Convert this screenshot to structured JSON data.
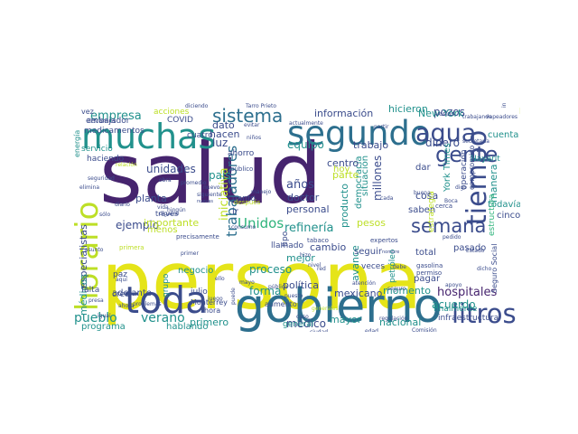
{
  "palette": {
    "dark_purple": "#46246e",
    "indigo": "#3b4c8c",
    "steel_blue": "#2d6f8e",
    "teal": "#21918c",
    "green": "#2fb47c",
    "light_green": "#6ece58",
    "lime": "#bddf26",
    "yellow": "#e5e419"
  },
  "words": [
    {
      "text": "salud",
      "color": "dark_purple"
    },
    {
      "text": "persona",
      "color": "yellow"
    },
    {
      "text": "gobierno",
      "color": "steel_blue"
    },
    {
      "text": "muchas",
      "color": "teal"
    },
    {
      "text": "segundo",
      "color": "steel_blue"
    },
    {
      "text": "toda",
      "color": "indigo"
    },
    {
      "text": "horario",
      "color": "lime"
    },
    {
      "text": "sistema",
      "color": "steel_blue"
    },
    {
      "text": "semana",
      "color": "indigo"
    },
    {
      "text": "tiempo",
      "color": "indigo"
    },
    {
      "text": "agua",
      "color": "indigo"
    },
    {
      "text": "gente",
      "color": "indigo"
    },
    {
      "text": "litros",
      "color": "indigo"
    },
    {
      "text": "hospitales",
      "color": "dark_purple"
    },
    {
      "text": "trabajadores",
      "color": "steel_blue"
    },
    {
      "text": "empresa",
      "color": "teal"
    },
    {
      "text": "Unidos",
      "color": "green"
    },
    {
      "text": "refinería",
      "color": "teal"
    },
    {
      "text": "pueblo",
      "color": "teal"
    },
    {
      "text": "verano",
      "color": "teal"
    },
    {
      "text": "millones",
      "color": "indigo"
    },
    {
      "text": "proceso",
      "color": "teal"
    },
    {
      "text": "unidades",
      "color": "indigo"
    },
    {
      "text": "ejemplo",
      "color": "indigo"
    },
    {
      "text": "forma",
      "color": "teal"
    },
    {
      "text": "acuerdo",
      "color": "teal"
    },
    {
      "text": "pozos",
      "color": "indigo"
    },
    {
      "text": "dinero",
      "color": "indigo"
    },
    {
      "text": "información",
      "color": "indigo"
    },
    {
      "text": "hicieron",
      "color": "teal"
    },
    {
      "text": "New York",
      "color": "teal"
    },
    {
      "text": "especialistas",
      "color": "indigo"
    },
    {
      "text": "médicos",
      "color": "teal"
    },
    {
      "text": "iniciativa",
      "color": "lime"
    },
    {
      "text": "años",
      "color": "indigo"
    },
    {
      "text": "equipo",
      "color": "teal"
    },
    {
      "text": "mexicano",
      "color": "indigo"
    },
    {
      "text": "momento",
      "color": "teal"
    },
    {
      "text": "primero",
      "color": "teal"
    },
    {
      "text": "nacional",
      "color": "teal"
    },
    {
      "text": "médico",
      "color": "indigo"
    },
    {
      "text": "mayor",
      "color": "teal"
    },
    {
      "text": "manera",
      "color": "teal"
    },
    {
      "text": "cuenta",
      "color": "teal"
    },
    {
      "text": "cinco",
      "color": "indigo"
    },
    {
      "text": "todavía",
      "color": "teal"
    },
    {
      "text": "luz",
      "color": "indigo"
    },
    {
      "text": "país",
      "color": "teal"
    },
    {
      "text": "dato",
      "color": "indigo"
    },
    {
      "text": "hacen",
      "color": "indigo"
    },
    {
      "text": "planta",
      "color": "indigo"
    },
    {
      "text": "importante",
      "color": "lime"
    },
    {
      "text": "mejor",
      "color": "teal"
    },
    {
      "text": "política",
      "color": "indigo"
    },
    {
      "text": "avance",
      "color": "teal"
    },
    {
      "text": "producto",
      "color": "teal"
    },
    {
      "text": "democracia",
      "color": "teal"
    },
    {
      "text": "situación",
      "color": "teal"
    },
    {
      "text": "cosa",
      "color": "indigo"
    },
    {
      "text": "doctor",
      "color": "indigo"
    },
    {
      "text": "centro",
      "color": "indigo"
    },
    {
      "text": "parte",
      "color": "lime"
    },
    {
      "text": "trabajo",
      "color": "indigo"
    },
    {
      "text": "personal",
      "color": "indigo"
    },
    {
      "text": "cambio",
      "color": "indigo"
    },
    {
      "text": "pesos",
      "color": "lime"
    },
    {
      "text": "hablando",
      "color": "teal"
    },
    {
      "text": "programa",
      "color": "teal"
    },
    {
      "text": "adelante",
      "color": "indigo"
    },
    {
      "text": "negocio",
      "color": "teal"
    },
    {
      "text": "embajador",
      "color": "indigo"
    },
    {
      "text": "medicamentos",
      "color": "indigo"
    },
    {
      "text": "acciones",
      "color": "lime"
    },
    {
      "text": "COVID",
      "color": "indigo"
    },
    {
      "text": "cuatro",
      "color": "indigo"
    },
    {
      "text": "ahorro",
      "color": "indigo"
    },
    {
      "text": "cuanto",
      "color": "indigo"
    },
    {
      "text": "servicio",
      "color": "teal"
    },
    {
      "text": "haciendo",
      "color": "indigo"
    },
    {
      "text": "falta",
      "color": "indigo"
    },
    {
      "text": "paz",
      "color": "indigo"
    },
    {
      "text": "creo",
      "color": "indigo"
    },
    {
      "text": "grupo",
      "color": "teal"
    },
    {
      "text": "tipo",
      "color": "indigo"
    },
    {
      "text": "llamado",
      "color": "indigo"
    },
    {
      "text": "general",
      "color": "teal"
    },
    {
      "text": "pasado",
      "color": "indigo"
    },
    {
      "text": "pagar",
      "color": "indigo"
    },
    {
      "text": "total",
      "color": "indigo"
    },
    {
      "text": "seguir",
      "color": "indigo"
    },
    {
      "text": "veces",
      "color": "indigo"
    },
    {
      "text": "petróleo",
      "color": "teal"
    },
    {
      "text": "saben",
      "color": "indigo"
    },
    {
      "text": "dar",
      "color": "indigo"
    },
    {
      "text": "finalmente",
      "color": "teal"
    },
    {
      "text": "infraestructura",
      "color": "indigo"
    },
    {
      "text": "York Times",
      "color": "teal"
    },
    {
      "text": "Nayarit",
      "color": "teal"
    },
    {
      "text": "operación",
      "color": "indigo"
    },
    {
      "text": "compromiso",
      "color": "indigo"
    },
    {
      "text": "Seguro Social",
      "color": "indigo"
    },
    {
      "text": "ir",
      "color": "indigo"
    },
    {
      "text": "hoy",
      "color": "lime"
    },
    {
      "text": "menos",
      "color": "lime"
    },
    {
      "text": "julio",
      "color": "indigo"
    },
    {
      "text": "hora",
      "color": "indigo"
    },
    {
      "text": "través",
      "color": "indigo"
    },
    {
      "text": "Monterrey",
      "color": "indigo"
    },
    {
      "text": "aumento",
      "color": "indigo"
    },
    {
      "text": "vez",
      "color": "indigo"
    },
    {
      "text": "energía",
      "color": "teal"
    },
    {
      "text": "llevamos",
      "color": "indigo"
    },
    {
      "text": "precisamente",
      "color": "indigo"
    },
    {
      "text": "estructura",
      "color": "green"
    },
    {
      "text": "público",
      "color": "indigo"
    },
    {
      "text": "tabaco",
      "color": "indigo"
    },
    {
      "text": "expertos",
      "color": "indigo"
    },
    {
      "text": "atención",
      "color": "indigo"
    },
    {
      "text": "gasolina",
      "color": "indigo"
    },
    {
      "text": "permiso",
      "color": "indigo"
    },
    {
      "text": "cerca",
      "color": "indigo"
    },
    {
      "text": "primera",
      "color": "lime"
    },
    {
      "text": "diciendo",
      "color": "indigo"
    },
    {
      "text": "Tarro Prieto",
      "color": "indigo"
    },
    {
      "text": "trabajando",
      "color": "indigo"
    },
    {
      "text": "vapeadores",
      "color": "indigo"
    },
    {
      "text": "industria",
      "color": "indigo"
    },
    {
      "text": "secretaria",
      "color": "indigo"
    },
    {
      "text": "seguridad",
      "color": "indigo"
    },
    {
      "text": "relación",
      "color": "lime"
    },
    {
      "text": "diario",
      "color": "indigo"
    },
    {
      "text": "consumo",
      "color": "indigo"
    },
    {
      "text": "dicho",
      "color": "indigo"
    },
    {
      "text": "apoyo",
      "color": "indigo"
    },
    {
      "text": "Comisión",
      "color": "indigo"
    },
    {
      "text": "siguiente",
      "color": "indigo"
    },
    {
      "text": "nuevo",
      "color": "indigo"
    },
    {
      "text": "sólo",
      "color": "indigo"
    },
    {
      "text": "después",
      "color": "lime"
    },
    {
      "text": "varios",
      "color": "indigo"
    },
    {
      "text": "partir",
      "color": "indigo"
    },
    {
      "text": "actualmente",
      "color": "indigo"
    },
    {
      "text": "niños",
      "color": "indigo"
    },
    {
      "text": "evitar",
      "color": "indigo"
    },
    {
      "text": "ningún",
      "color": "indigo"
    },
    {
      "text": "ley",
      "color": "lime"
    },
    {
      "text": "asunto",
      "color": "indigo"
    },
    {
      "text": "ahora",
      "color": "indigo"
    },
    {
      "text": "presa",
      "color": "indigo"
    },
    {
      "text": "puede",
      "color": "indigo"
    },
    {
      "text": "estrategia",
      "color": "lime"
    },
    {
      "text": "problemas",
      "color": "indigo"
    },
    {
      "text": "pública",
      "color": "indigo"
    },
    {
      "text": "red",
      "color": "indigo"
    },
    {
      "text": "debe",
      "color": "indigo"
    },
    {
      "text": "seguro",
      "color": "indigo"
    },
    {
      "text": "nombre",
      "color": "indigo"
    },
    {
      "text": "cada",
      "color": "indigo"
    },
    {
      "text": "nivel",
      "color": "indigo"
    },
    {
      "text": "hizo",
      "color": "indigo"
    },
    {
      "text": "obra",
      "color": "indigo"
    },
    {
      "text": "vida",
      "color": "indigo"
    },
    {
      "text": "promedio",
      "color": "indigo"
    },
    {
      "text": "buena",
      "color": "indigo"
    },
    {
      "text": "igual",
      "color": "indigo"
    },
    {
      "text": "Boca",
      "color": "indigo"
    },
    {
      "text": "regulación",
      "color": "indigo"
    },
    {
      "text": "digo",
      "color": "indigo"
    },
    {
      "text": "nuevas",
      "color": "indigo"
    },
    {
      "text": "manejo",
      "color": "indigo"
    },
    {
      "text": "ciudad",
      "color": "indigo"
    },
    {
      "text": "elimina",
      "color": "indigo"
    },
    {
      "text": "dígame",
      "color": "indigo"
    },
    {
      "text": "generales",
      "color": "lime"
    },
    {
      "text": "pedido",
      "color": "indigo"
    },
    {
      "text": "edad",
      "color": "indigo"
    },
    {
      "text": "Estado",
      "color": "indigo"
    },
    {
      "text": "aquí",
      "color": "indigo"
    },
    {
      "text": "juego",
      "color": "indigo"
    },
    {
      "text": "ello",
      "color": "indigo"
    },
    {
      "text": "mayo",
      "color": "indigo"
    },
    {
      "text": "primer",
      "color": "indigo"
    },
    {
      "text": "puesto",
      "color": "indigo"
    },
    {
      "text": "caso",
      "color": "indigo"
    }
  ]
}
